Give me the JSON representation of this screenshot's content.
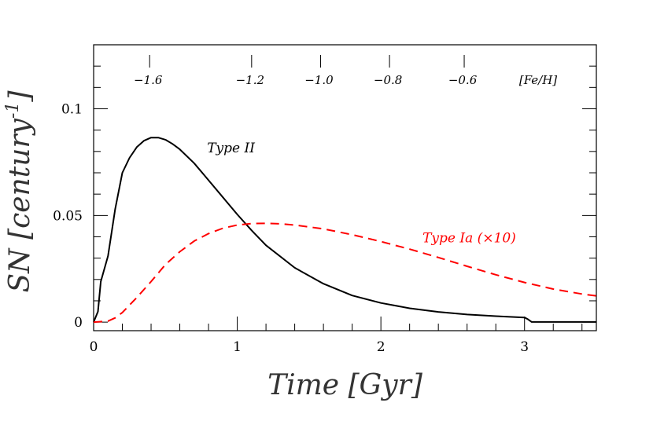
{
  "chart_data": {
    "type": "line",
    "title": "",
    "xlabel": "Time [Gyr]",
    "ylabel_main": "SN [century",
    "ylabel_sup": "-1",
    "ylabel_end": "]",
    "xlim": [
      0,
      3.5
    ],
    "ylim": [
      -0.004,
      0.13
    ],
    "x_ticks": [
      0,
      1,
      2,
      3
    ],
    "x_tick_labels": [
      "0",
      "1",
      "2",
      "3"
    ],
    "y_ticks": [
      0,
      0.05,
      0.1
    ],
    "y_tick_labels": [
      "0",
      "0.05",
      "0.1"
    ],
    "top_axis": {
      "label": "[Fe/H]",
      "ticks": [
        {
          "x": 0.39,
          "label": "−1.6"
        },
        {
          "x": 1.1,
          "label": "−1.2"
        },
        {
          "x": 1.58,
          "label": "−1.0"
        },
        {
          "x": 2.06,
          "label": "−0.8"
        },
        {
          "x": 2.58,
          "label": "−0.6"
        }
      ]
    },
    "series": [
      {
        "name": "Type II",
        "color": "#000000",
        "dash": "solid",
        "x": [
          0,
          0.03,
          0.05,
          0.1,
          0.15,
          0.2,
          0.25,
          0.3,
          0.35,
          0.4,
          0.45,
          0.5,
          0.55,
          0.6,
          0.7,
          0.8,
          0.9,
          1.0,
          1.1,
          1.2,
          1.4,
          1.6,
          1.8,
          2.0,
          2.2,
          2.4,
          2.6,
          2.8,
          3.0,
          3.02,
          3.05,
          3.5
        ],
        "y": [
          0,
          0.005,
          0.019,
          0.031,
          0.053,
          0.07,
          0.077,
          0.082,
          0.085,
          0.0865,
          0.0865,
          0.0855,
          0.0835,
          0.081,
          0.0745,
          0.0665,
          0.0585,
          0.0505,
          0.043,
          0.036,
          0.0255,
          0.018,
          0.0125,
          0.009,
          0.0065,
          0.0048,
          0.0036,
          0.0028,
          0.0022,
          0.0015,
          0.0001,
          0.0001
        ]
      },
      {
        "name": "Type Ia (×10)",
        "color": "#ff0000",
        "dash": "dashed",
        "x": [
          0,
          0.1,
          0.15,
          0.2,
          0.3,
          0.4,
          0.5,
          0.6,
          0.7,
          0.8,
          0.9,
          1.0,
          1.1,
          1.2,
          1.3,
          1.4,
          1.6,
          1.8,
          2.0,
          2.2,
          2.4,
          2.6,
          2.8,
          3.0,
          3.2,
          3.4,
          3.5
        ],
        "y": [
          0,
          0.0005,
          0.002,
          0.0045,
          0.0115,
          0.019,
          0.027,
          0.033,
          0.038,
          0.0415,
          0.044,
          0.0455,
          0.0462,
          0.0463,
          0.0461,
          0.0455,
          0.0437,
          0.041,
          0.0378,
          0.0342,
          0.0303,
          0.0262,
          0.0222,
          0.0186,
          0.0155,
          0.0132,
          0.0123
        ]
      }
    ],
    "annotations": [
      {
        "text": "Type II",
        "x": 0.79,
        "y": 0.0795,
        "color": "#000000"
      },
      {
        "text": "Type Ia (×10)",
        "x": 2.29,
        "y": 0.0375,
        "color": "#ff0000"
      }
    ]
  }
}
